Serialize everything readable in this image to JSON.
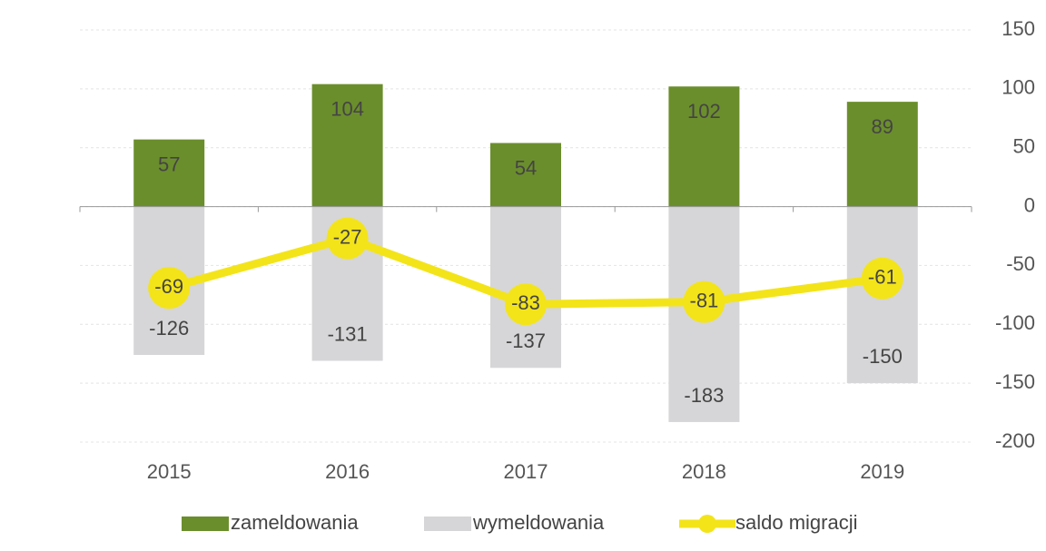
{
  "chart_data": {
    "type": "bar",
    "categories": [
      "2015",
      "2016",
      "2017",
      "2018",
      "2019"
    ],
    "series": [
      {
        "name": "zameldowania",
        "type": "bar",
        "color": "#6b8e2c",
        "values": [
          57,
          104,
          54,
          102,
          89
        ]
      },
      {
        "name": "wymeldowania",
        "type": "bar",
        "color": "#d6d6d8",
        "values": [
          -126,
          -131,
          -137,
          -183,
          -150
        ]
      },
      {
        "name": "saldo migracji",
        "type": "line",
        "color": "#f3e41a",
        "values": [
          -69,
          -27,
          -83,
          -81,
          -61
        ]
      }
    ],
    "ylim": [
      -200,
      150
    ],
    "yticks": [
      150,
      100,
      50,
      0,
      -50,
      -100,
      -150,
      -200
    ],
    "grid": true,
    "legend": "bottom"
  }
}
